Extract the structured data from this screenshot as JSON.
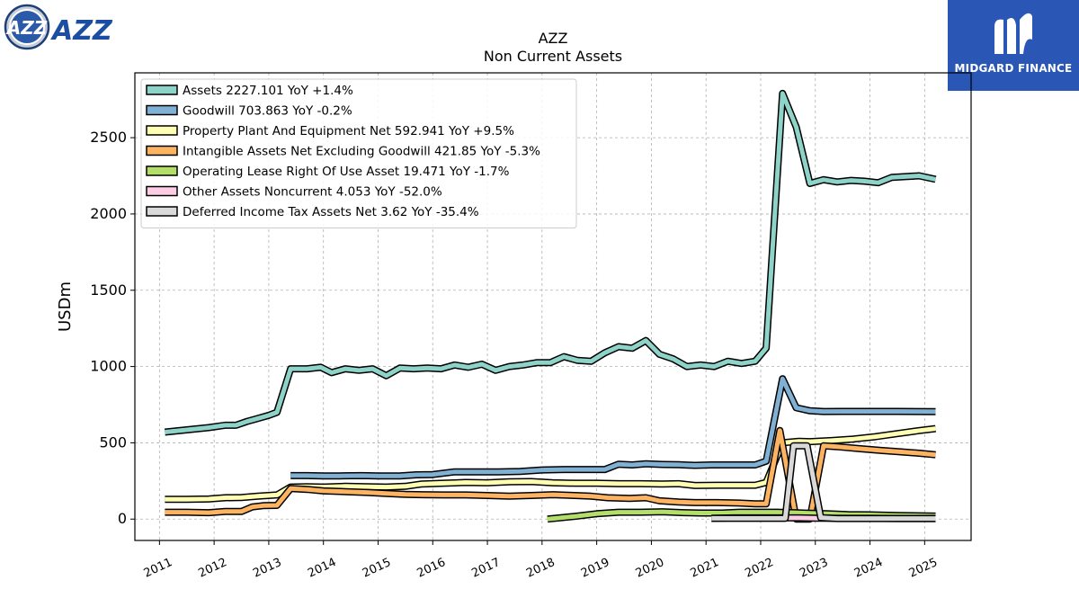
{
  "logos": {
    "left_text": "AZZ",
    "right_text": "MIDGARD FINANCE"
  },
  "chart_data": {
    "type": "line",
    "title": "AZZ",
    "subtitle": "Non Current  Assets",
    "ylabel": "USDm",
    "xlabel": "",
    "xlim": [
      2010.55,
      2025.85
    ],
    "ylim": [
      -140,
      2925
    ],
    "yticks": [
      0,
      500,
      1000,
      1500,
      2000,
      2500
    ],
    "xticks": [
      2011,
      2012,
      2013,
      2014,
      2015,
      2016,
      2017,
      2018,
      2019,
      2020,
      2021,
      2022,
      2023,
      2024,
      2025
    ],
    "grid": true,
    "legend_position": "top-left",
    "series": [
      {
        "name": "Assets  2227.101 YoY +1.4%",
        "color": "#8dd3c7",
        "points": [
          [
            2011.1,
            570
          ],
          [
            2011.5,
            585
          ],
          [
            2011.9,
            600
          ],
          [
            2012.2,
            615
          ],
          [
            2012.4,
            615
          ],
          [
            2012.6,
            640
          ],
          [
            2012.8,
            660
          ],
          [
            2013.0,
            680
          ],
          [
            2013.15,
            700
          ],
          [
            2013.4,
            985
          ],
          [
            2013.7,
            985
          ],
          [
            2013.95,
            995
          ],
          [
            2014.15,
            960
          ],
          [
            2014.4,
            985
          ],
          [
            2014.65,
            975
          ],
          [
            2014.9,
            985
          ],
          [
            2015.15,
            940
          ],
          [
            2015.4,
            990
          ],
          [
            2015.65,
            985
          ],
          [
            2015.9,
            990
          ],
          [
            2016.15,
            985
          ],
          [
            2016.4,
            1010
          ],
          [
            2016.65,
            995
          ],
          [
            2016.9,
            1015
          ],
          [
            2017.15,
            975
          ],
          [
            2017.4,
            1000
          ],
          [
            2017.65,
            1010
          ],
          [
            2017.9,
            1025
          ],
          [
            2018.15,
            1025
          ],
          [
            2018.4,
            1065
          ],
          [
            2018.65,
            1040
          ],
          [
            2018.9,
            1035
          ],
          [
            2019.15,
            1090
          ],
          [
            2019.4,
            1130
          ],
          [
            2019.65,
            1120
          ],
          [
            2019.9,
            1170
          ],
          [
            2020.15,
            1080
          ],
          [
            2020.4,
            1050
          ],
          [
            2020.65,
            1000
          ],
          [
            2020.9,
            1010
          ],
          [
            2021.15,
            1000
          ],
          [
            2021.4,
            1035
          ],
          [
            2021.65,
            1020
          ],
          [
            2021.9,
            1035
          ],
          [
            2022.1,
            1120
          ],
          [
            2022.4,
            2790
          ],
          [
            2022.65,
            2570
          ],
          [
            2022.9,
            2200
          ],
          [
            2023.15,
            2225
          ],
          [
            2023.4,
            2210
          ],
          [
            2023.65,
            2220
          ],
          [
            2023.9,
            2215
          ],
          [
            2024.15,
            2205
          ],
          [
            2024.4,
            2240
          ],
          [
            2024.65,
            2245
          ],
          [
            2024.9,
            2250
          ],
          [
            2025.2,
            2227
          ]
        ]
      },
      {
        "name": "Goodwill  703.863 YoY -0.2%",
        "color": "#80b1d3",
        "points": [
          [
            2013.4,
            285
          ],
          [
            2013.7,
            285
          ],
          [
            2014.0,
            283
          ],
          [
            2014.3,
            283
          ],
          [
            2014.7,
            285
          ],
          [
            2015.0,
            283
          ],
          [
            2015.4,
            283
          ],
          [
            2015.7,
            290
          ],
          [
            2016.0,
            292
          ],
          [
            2016.4,
            310
          ],
          [
            2016.8,
            310
          ],
          [
            2017.2,
            310
          ],
          [
            2017.6,
            312
          ],
          [
            2018.0,
            322
          ],
          [
            2018.4,
            325
          ],
          [
            2018.8,
            325
          ],
          [
            2019.15,
            325
          ],
          [
            2019.4,
            360
          ],
          [
            2019.65,
            355
          ],
          [
            2019.9,
            362
          ],
          [
            2020.2,
            358
          ],
          [
            2020.5,
            356
          ],
          [
            2020.8,
            352
          ],
          [
            2021.1,
            355
          ],
          [
            2021.5,
            355
          ],
          [
            2021.9,
            355
          ],
          [
            2022.1,
            380
          ],
          [
            2022.4,
            920
          ],
          [
            2022.65,
            730
          ],
          [
            2022.9,
            710
          ],
          [
            2023.15,
            705
          ],
          [
            2023.5,
            706
          ],
          [
            2024.0,
            706
          ],
          [
            2024.5,
            706
          ],
          [
            2025.2,
            704
          ]
        ]
      },
      {
        "name": "Property Plant And Equipment Net  592.941 YoY +9.5%",
        "color": "#ffffb3",
        "points": [
          [
            2011.1,
            130
          ],
          [
            2011.5,
            130
          ],
          [
            2011.9,
            132
          ],
          [
            2012.2,
            140
          ],
          [
            2012.5,
            142
          ],
          [
            2012.8,
            150
          ],
          [
            2013.15,
            158
          ],
          [
            2013.4,
            210
          ],
          [
            2013.7,
            212
          ],
          [
            2014.0,
            210
          ],
          [
            2014.4,
            215
          ],
          [
            2014.8,
            212
          ],
          [
            2015.15,
            210
          ],
          [
            2015.5,
            215
          ],
          [
            2015.8,
            230
          ],
          [
            2016.2,
            235
          ],
          [
            2016.6,
            240
          ],
          [
            2017.0,
            238
          ],
          [
            2017.4,
            245
          ],
          [
            2017.8,
            246
          ],
          [
            2018.2,
            238
          ],
          [
            2018.6,
            235
          ],
          [
            2019.0,
            235
          ],
          [
            2019.4,
            232
          ],
          [
            2019.8,
            232
          ],
          [
            2020.2,
            230
          ],
          [
            2020.5,
            232
          ],
          [
            2020.8,
            220
          ],
          [
            2021.2,
            222
          ],
          [
            2021.6,
            222
          ],
          [
            2021.9,
            222
          ],
          [
            2022.1,
            240
          ],
          [
            2022.4,
            500
          ],
          [
            2022.7,
            510
          ],
          [
            2022.9,
            508
          ],
          [
            2023.3,
            515
          ],
          [
            2023.7,
            525
          ],
          [
            2024.1,
            540
          ],
          [
            2024.5,
            560
          ],
          [
            2024.9,
            580
          ],
          [
            2025.2,
            593
          ]
        ]
      },
      {
        "name": "Intangible Assets Net Excluding Goodwill  421.85 YoY -5.3%",
        "color": "#fdb462",
        "points": [
          [
            2011.1,
            45
          ],
          [
            2011.5,
            45
          ],
          [
            2011.9,
            42
          ],
          [
            2012.2,
            50
          ],
          [
            2012.5,
            50
          ],
          [
            2012.7,
            80
          ],
          [
            2012.9,
            88
          ],
          [
            2013.15,
            90
          ],
          [
            2013.4,
            200
          ],
          [
            2013.7,
            195
          ],
          [
            2014.0,
            185
          ],
          [
            2014.4,
            180
          ],
          [
            2014.8,
            175
          ],
          [
            2015.15,
            168
          ],
          [
            2015.5,
            162
          ],
          [
            2015.8,
            160
          ],
          [
            2016.2,
            158
          ],
          [
            2016.6,
            158
          ],
          [
            2017.0,
            155
          ],
          [
            2017.4,
            150
          ],
          [
            2017.8,
            155
          ],
          [
            2018.2,
            160
          ],
          [
            2018.6,
            155
          ],
          [
            2018.9,
            150
          ],
          [
            2019.2,
            140
          ],
          [
            2019.6,
            136
          ],
          [
            2019.9,
            140
          ],
          [
            2020.15,
            120
          ],
          [
            2020.5,
            112
          ],
          [
            2020.8,
            108
          ],
          [
            2021.2,
            108
          ],
          [
            2021.6,
            105
          ],
          [
            2021.9,
            100
          ],
          [
            2022.1,
            100
          ],
          [
            2022.35,
            580
          ],
          [
            2022.65,
            0
          ],
          [
            2022.9,
            0
          ],
          [
            2023.15,
            480
          ],
          [
            2023.4,
            475
          ],
          [
            2023.8,
            462
          ],
          [
            2024.2,
            450
          ],
          [
            2024.6,
            440
          ],
          [
            2024.9,
            432
          ],
          [
            2025.2,
            422
          ]
        ]
      },
      {
        "name": "Operating Lease Right Of Use Asset  19.471 YoY -1.7%",
        "color": "#b3de69",
        "points": [
          [
            2018.1,
            0
          ],
          [
            2018.6,
            18
          ],
          [
            2019.0,
            35
          ],
          [
            2019.4,
            45
          ],
          [
            2019.8,
            45
          ],
          [
            2020.2,
            48
          ],
          [
            2020.6,
            42
          ],
          [
            2020.9,
            40
          ],
          [
            2021.3,
            40
          ],
          [
            2021.6,
            45
          ],
          [
            2021.9,
            45
          ],
          [
            2022.3,
            45
          ],
          [
            2022.6,
            42
          ],
          [
            2022.9,
            38
          ],
          [
            2023.2,
            35
          ],
          [
            2023.6,
            30
          ],
          [
            2024.0,
            28
          ],
          [
            2024.5,
            24
          ],
          [
            2025.2,
            19.5
          ]
        ]
      },
      {
        "name": "Other Assets Noncurrent  4.053 YoY -52.0%",
        "color": "#fccde5",
        "points": [
          [
            2021.1,
            5
          ],
          [
            2021.5,
            8
          ],
          [
            2021.9,
            8
          ],
          [
            2022.3,
            8
          ],
          [
            2022.7,
            8
          ],
          [
            2023.0,
            6
          ],
          [
            2023.5,
            5
          ],
          [
            2024.0,
            5
          ],
          [
            2024.5,
            4
          ],
          [
            2025.2,
            4.05
          ]
        ]
      },
      {
        "name": "Deferred Income Tax Assets Net  3.62 YoY -35.4%",
        "color": "#d9d9d9",
        "points": [
          [
            2021.1,
            5
          ],
          [
            2021.5,
            5
          ],
          [
            2021.9,
            5
          ],
          [
            2022.2,
            5
          ],
          [
            2022.45,
            5
          ],
          [
            2022.6,
            480
          ],
          [
            2022.85,
            480
          ],
          [
            2023.1,
            10
          ],
          [
            2023.4,
            4
          ],
          [
            2024.0,
            4
          ],
          [
            2024.5,
            4
          ],
          [
            2025.2,
            3.62
          ]
        ]
      }
    ]
  }
}
